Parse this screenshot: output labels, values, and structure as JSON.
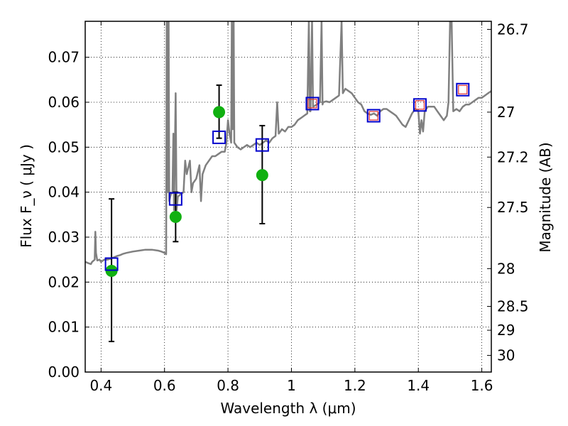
{
  "chart_data": {
    "type": "scatter",
    "xlabel": "Wavelength  λ (μm)",
    "ylabel": "Flux  F_ν  ( μJy )",
    "ylabel_right": "Magnitude (AB)",
    "xlim": [
      0.35,
      1.63
    ],
    "ylim": [
      0.0,
      0.078
    ],
    "grid": true,
    "x_ticks": [
      {
        "value": 0.4,
        "label": "0.4"
      },
      {
        "value": 0.6,
        "label": "0.6"
      },
      {
        "value": 0.8,
        "label": "0.8"
      },
      {
        "value": 1.0,
        "label": "1"
      },
      {
        "value": 1.2,
        "label": "1.2"
      },
      {
        "value": 1.4,
        "label": "1.4"
      },
      {
        "value": 1.6,
        "label": "1.6"
      }
    ],
    "y_ticks": [
      {
        "value": 0.0,
        "label": "0.00"
      },
      {
        "value": 0.01,
        "label": "0.01"
      },
      {
        "value": 0.02,
        "label": "0.02"
      },
      {
        "value": 0.03,
        "label": "0.03"
      },
      {
        "value": 0.04,
        "label": "0.04"
      },
      {
        "value": 0.05,
        "label": "0.05"
      },
      {
        "value": 0.06,
        "label": "0.06"
      },
      {
        "value": 0.07,
        "label": "0.07"
      }
    ],
    "right_ticks": [
      {
        "flux": 0.0762,
        "label": "26.7"
      },
      {
        "flux": 0.0578,
        "label": "27"
      },
      {
        "flux": 0.0478,
        "label": "27.2"
      },
      {
        "flux": 0.0366,
        "label": "27.5"
      },
      {
        "flux": 0.023,
        "label": "28"
      },
      {
        "flux": 0.0146,
        "label": "28.5"
      },
      {
        "flux": 0.0093,
        "label": "29"
      },
      {
        "flux": 0.0037,
        "label": "30"
      }
    ],
    "series": [
      {
        "kind": "line",
        "color": "#808080",
        "points": [
          [
            0.35,
            0.0245
          ],
          [
            0.36,
            0.0242
          ],
          [
            0.368,
            0.024
          ],
          [
            0.372,
            0.0245
          ],
          [
            0.38,
            0.025
          ],
          [
            0.382,
            0.0312
          ],
          [
            0.384,
            0.0265
          ],
          [
            0.388,
            0.0248
          ],
          [
            0.395,
            0.025
          ],
          [
            0.4,
            0.0245
          ],
          [
            0.41,
            0.025
          ],
          [
            0.42,
            0.025
          ],
          [
            0.43,
            0.0252
          ],
          [
            0.44,
            0.0255
          ],
          [
            0.45,
            0.0258
          ],
          [
            0.46,
            0.026
          ],
          [
            0.47,
            0.0263
          ],
          [
            0.48,
            0.0265
          ],
          [
            0.5,
            0.0268
          ],
          [
            0.52,
            0.027
          ],
          [
            0.54,
            0.0272
          ],
          [
            0.56,
            0.0272
          ],
          [
            0.58,
            0.027
          ],
          [
            0.59,
            0.0268
          ],
          [
            0.6,
            0.0265
          ],
          [
            0.605,
            0.0262
          ],
          [
            0.606,
            0.05
          ],
          [
            0.607,
            0.078
          ],
          [
            0.609,
            0.078
          ],
          [
            0.61,
            0.04
          ],
          [
            0.613,
            0.078
          ],
          [
            0.615,
            0.038
          ],
          [
            0.618,
            0.039
          ],
          [
            0.62,
            0.0395
          ],
          [
            0.625,
            0.04
          ],
          [
            0.628,
            0.053
          ],
          [
            0.63,
            0.036
          ],
          [
            0.635,
            0.062
          ],
          [
            0.638,
            0.036
          ],
          [
            0.642,
            0.039
          ],
          [
            0.65,
            0.0395
          ],
          [
            0.66,
            0.04
          ],
          [
            0.665,
            0.047
          ],
          [
            0.67,
            0.044
          ],
          [
            0.68,
            0.047
          ],
          [
            0.685,
            0.04
          ],
          [
            0.69,
            0.042
          ],
          [
            0.7,
            0.043
          ],
          [
            0.71,
            0.046
          ],
          [
            0.715,
            0.038
          ],
          [
            0.72,
            0.044
          ],
          [
            0.73,
            0.046
          ],
          [
            0.74,
            0.047
          ],
          [
            0.75,
            0.048
          ],
          [
            0.76,
            0.048
          ],
          [
            0.77,
            0.0485
          ],
          [
            0.78,
            0.049
          ],
          [
            0.79,
            0.049
          ],
          [
            0.795,
            0.051
          ],
          [
            0.8,
            0.056
          ],
          [
            0.805,
            0.053
          ],
          [
            0.81,
            0.051
          ],
          [
            0.812,
            0.078
          ],
          [
            0.815,
            0.054
          ],
          [
            0.818,
            0.078
          ],
          [
            0.82,
            0.051
          ],
          [
            0.83,
            0.05
          ],
          [
            0.84,
            0.0495
          ],
          [
            0.85,
            0.05
          ],
          [
            0.86,
            0.0505
          ],
          [
            0.87,
            0.05
          ],
          [
            0.88,
            0.0505
          ],
          [
            0.89,
            0.051
          ],
          [
            0.9,
            0.0505
          ],
          [
            0.91,
            0.051
          ],
          [
            0.92,
            0.0515
          ],
          [
            0.93,
            0.051
          ],
          [
            0.94,
            0.052
          ],
          [
            0.95,
            0.0525
          ],
          [
            0.955,
            0.06
          ],
          [
            0.96,
            0.053
          ],
          [
            0.97,
            0.054
          ],
          [
            0.98,
            0.0535
          ],
          [
            0.99,
            0.0545
          ],
          [
            1.0,
            0.0545
          ],
          [
            1.01,
            0.055
          ],
          [
            1.02,
            0.056
          ],
          [
            1.03,
            0.0565
          ],
          [
            1.04,
            0.057
          ],
          [
            1.05,
            0.0575
          ],
          [
            1.055,
            0.078
          ],
          [
            1.058,
            0.058
          ],
          [
            1.06,
            0.058
          ],
          [
            1.065,
            0.078
          ],
          [
            1.068,
            0.059
          ],
          [
            1.08,
            0.0595
          ],
          [
            1.09,
            0.06
          ],
          [
            1.095,
            0.078
          ],
          [
            1.098,
            0.0595
          ],
          [
            1.1,
            0.06
          ],
          [
            1.11,
            0.0602
          ],
          [
            1.12,
            0.06
          ],
          [
            1.13,
            0.0605
          ],
          [
            1.14,
            0.061
          ],
          [
            1.15,
            0.0615
          ],
          [
            1.158,
            0.078
          ],
          [
            1.162,
            0.062
          ],
          [
            1.17,
            0.063
          ],
          [
            1.18,
            0.0625
          ],
          [
            1.19,
            0.062
          ],
          [
            1.2,
            0.061
          ],
          [
            1.21,
            0.06
          ],
          [
            1.22,
            0.0595
          ],
          [
            1.23,
            0.058
          ],
          [
            1.24,
            0.0575
          ],
          [
            1.25,
            0.0572
          ],
          [
            1.26,
            0.0575
          ],
          [
            1.27,
            0.057
          ],
          [
            1.28,
            0.058
          ],
          [
            1.29,
            0.0585
          ],
          [
            1.3,
            0.0585
          ],
          [
            1.31,
            0.058
          ],
          [
            1.32,
            0.0575
          ],
          [
            1.33,
            0.057
          ],
          [
            1.34,
            0.056
          ],
          [
            1.35,
            0.055
          ],
          [
            1.36,
            0.0545
          ],
          [
            1.37,
            0.056
          ],
          [
            1.38,
            0.0575
          ],
          [
            1.39,
            0.0585
          ],
          [
            1.4,
            0.058
          ],
          [
            1.405,
            0.053
          ],
          [
            1.41,
            0.056
          ],
          [
            1.415,
            0.0535
          ],
          [
            1.42,
            0.058
          ],
          [
            1.43,
            0.059
          ],
          [
            1.44,
            0.059
          ],
          [
            1.45,
            0.059
          ],
          [
            1.46,
            0.058
          ],
          [
            1.47,
            0.057
          ],
          [
            1.48,
            0.056
          ],
          [
            1.49,
            0.057
          ],
          [
            1.495,
            0.06
          ],
          [
            1.5,
            0.078
          ],
          [
            1.505,
            0.078
          ],
          [
            1.51,
            0.058
          ],
          [
            1.52,
            0.0585
          ],
          [
            1.53,
            0.058
          ],
          [
            1.54,
            0.059
          ],
          [
            1.55,
            0.0595
          ],
          [
            1.56,
            0.0595
          ],
          [
            1.57,
            0.06
          ],
          [
            1.58,
            0.0605
          ],
          [
            1.59,
            0.061
          ],
          [
            1.6,
            0.061
          ],
          [
            1.61,
            0.0615
          ],
          [
            1.62,
            0.062
          ],
          [
            1.63,
            0.0625
          ]
        ]
      },
      {
        "kind": "errorbar",
        "color": "#000000",
        "points": [
          {
            "x": 0.433,
            "low": 0.0068,
            "high": 0.0385
          },
          {
            "x": 0.635,
            "low": 0.029,
            "high": 0.04
          },
          {
            "x": 0.772,
            "low": 0.052,
            "high": 0.0638
          },
          {
            "x": 0.908,
            "low": 0.033,
            "high": 0.0548
          }
        ]
      },
      {
        "kind": "points",
        "marker": "circle",
        "color": "#10b010",
        "points": [
          [
            0.433,
            0.0225
          ],
          [
            0.635,
            0.0345
          ],
          [
            0.772,
            0.0578
          ],
          [
            0.908,
            0.0438
          ]
        ]
      },
      {
        "kind": "points",
        "marker": "square",
        "color": "#0000cc",
        "points": [
          [
            0.433,
            0.024
          ],
          [
            0.635,
            0.0385
          ],
          [
            0.772,
            0.0522
          ],
          [
            0.908,
            0.0505
          ],
          [
            1.066,
            0.0597
          ],
          [
            1.259,
            0.057
          ],
          [
            1.405,
            0.0594
          ],
          [
            1.54,
            0.0628
          ]
        ]
      },
      {
        "kind": "points",
        "marker": "small-square",
        "color": "#e03030",
        "points": [
          [
            1.066,
            0.0597
          ],
          [
            1.259,
            0.057
          ],
          [
            1.405,
            0.0594
          ],
          [
            1.54,
            0.0628
          ]
        ]
      }
    ]
  }
}
